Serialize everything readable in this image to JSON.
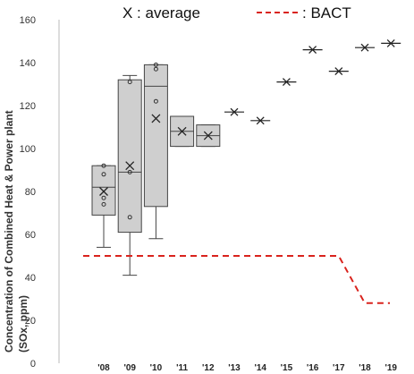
{
  "chart_data": {
    "type": "box",
    "ylabel_line1": "Concentration of Combined Heat & Power plant",
    "ylabel_line2": "(SOx, ppm)",
    "ylim": [
      0,
      160
    ],
    "yticks": [
      0,
      20,
      40,
      60,
      80,
      100,
      120,
      140,
      160
    ],
    "grid": false,
    "legend": {
      "position": "top",
      "average_label": "X : average",
      "bact_label": ": BACT"
    },
    "categories": [
      "'08",
      "'09",
      "'10",
      "'11",
      "'12",
      "'13",
      "'14",
      "'15",
      "'16",
      "'17",
      "'18",
      "'19"
    ],
    "boxes": [
      {
        "cat": "'08",
        "whisker_low": 54,
        "q1": 69,
        "median": 82,
        "q3": 92,
        "whisker_high": 92,
        "mean": 80,
        "outliers": [
          74,
          77,
          88,
          92
        ]
      },
      {
        "cat": "'09",
        "whisker_low": 41,
        "q1": 61,
        "median": 89,
        "q3": 132,
        "whisker_high": 134,
        "mean": 92,
        "outliers": [
          68,
          89,
          131
        ]
      },
      {
        "cat": "'10",
        "whisker_low": 58,
        "q1": 73,
        "median": 129,
        "q3": 139,
        "whisker_high": 139,
        "mean": 114,
        "outliers": [
          122,
          137,
          139
        ]
      },
      {
        "cat": "'11",
        "whisker_low": 101,
        "q1": 101,
        "median": 108,
        "q3": 115,
        "whisker_high": 115,
        "mean": 108,
        "outliers": []
      },
      {
        "cat": "'12",
        "whisker_low": 101,
        "q1": 101,
        "median": 106,
        "q3": 111,
        "whisker_high": 111,
        "mean": 106,
        "outliers": []
      }
    ],
    "single_values": [
      {
        "cat": "'13",
        "value": 117
      },
      {
        "cat": "'14",
        "value": 113
      },
      {
        "cat": "'15",
        "value": 131
      },
      {
        "cat": "'16",
        "value": 146
      },
      {
        "cat": "'17",
        "value": 136
      },
      {
        "cat": "'18",
        "value": 147
      },
      {
        "cat": "'19",
        "value": 149
      }
    ],
    "bact": [
      {
        "cat": "'08",
        "value": 50
      },
      {
        "cat": "'17",
        "value": 50
      },
      {
        "cat": "'18",
        "value": 28
      },
      {
        "cat": "'19",
        "value": 28
      }
    ],
    "colors": {
      "box_fill": "#cfcfcf",
      "box_stroke": "#444444",
      "bact": "#d9231d",
      "axis": "#bbbbbb"
    }
  }
}
